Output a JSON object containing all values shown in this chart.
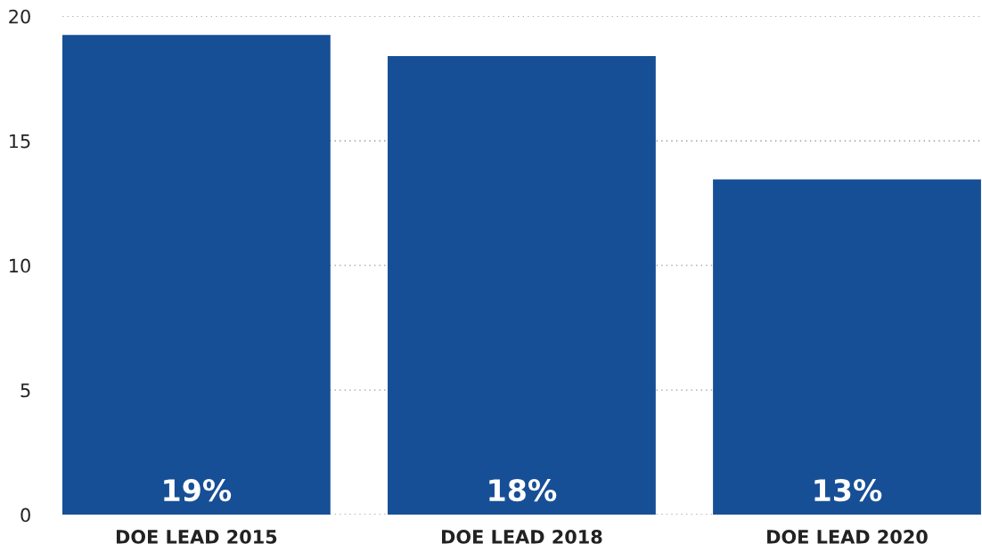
{
  "chart_data": {
    "type": "bar",
    "categories": [
      "DOE LEAD 2015",
      "DOE LEAD 2018",
      "DOE LEAD 2020"
    ],
    "values": [
      19.25,
      18.4,
      13.45
    ],
    "value_labels": [
      "19%",
      "18%",
      "13%"
    ],
    "color": "#174f96",
    "ylim": [
      0,
      20
    ],
    "yticks": [
      0,
      5,
      10,
      15,
      20
    ],
    "grid": "y"
  }
}
